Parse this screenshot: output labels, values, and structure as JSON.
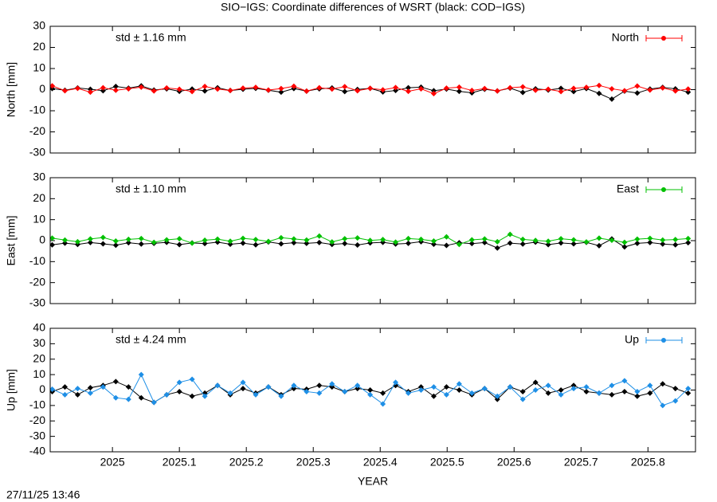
{
  "title": "SIO−IGS: Coordinate differences of WSRT (black: COD−IGS)",
  "timestamp": "27/11/25 13:46",
  "chart_data": [
    {
      "type": "line",
      "ylabel": "North [mm]",
      "annotation": "std ± 1.16 mm",
      "legend": "top-right",
      "xlim": [
        2024.907,
        2025.871
      ],
      "ylim": [
        -30,
        30
      ],
      "yticks": [
        -30,
        -20,
        -10,
        0,
        10,
        20,
        30
      ],
      "x": [
        2024.91,
        2024.929,
        2024.948,
        2024.967,
        2024.986,
        2025.005,
        2025.024,
        2025.043,
        2025.062,
        2025.081,
        2025.1,
        2025.119,
        2025.138,
        2025.157,
        2025.176,
        2025.195,
        2025.214,
        2025.233,
        2025.252,
        2025.271,
        2025.29,
        2025.309,
        2025.328,
        2025.347,
        2025.366,
        2025.385,
        2025.404,
        2025.423,
        2025.442,
        2025.461,
        2025.48,
        2025.499,
        2025.518,
        2025.537,
        2025.556,
        2025.575,
        2025.594,
        2025.613,
        2025.632,
        2025.651,
        2025.67,
        2025.689,
        2025.708,
        2025.727,
        2025.746,
        2025.765,
        2025.784,
        2025.803,
        2025.822,
        2025.841,
        2025.86
      ],
      "series": [
        {
          "color": "#000000",
          "values": [
            0.5,
            -0.3,
            0.8,
            0.2,
            -0.5,
            1.5,
            0.7,
            1.8,
            -0.2,
            0.4,
            -0.8,
            0.3,
            -0.6,
            0.9,
            -0.4,
            0.2,
            0.6,
            -0.3,
            -1.2,
            0.5,
            -0.7,
            0.4,
            0.8,
            -0.9,
            0.1,
            0.6,
            -1.1,
            -0.4,
            0.9,
            1.2,
            -0.5,
            0.3,
            -0.8,
            -1.5,
            0.2,
            -0.6,
            0.7,
            -1.3,
            0.4,
            -0.2,
            0.6,
            -0.9,
            0.5,
            -1.8,
            -4.5,
            -0.7,
            -1.6,
            0.3,
            1.1,
            0.4,
            -1.2
          ]
        },
        {
          "name": "North",
          "color": "#ff0000",
          "values": [
            1.8,
            -0.5,
            0.6,
            -1.2,
            0.9,
            -0.3,
            0.4,
            1.2,
            -0.6,
            0.8,
            0.2,
            -0.9,
            1.5,
            0.3,
            -0.4,
            0.7,
            1.1,
            -0.2,
            0.5,
            1.6,
            -0.7,
            0.9,
            0.3,
            1.4,
            -0.5,
            0.6,
            -0.1,
            1.0,
            -0.8,
            0.4,
            -1.9,
            0.7,
            1.2,
            -0.4,
            0.5,
            -0.6,
            0.9,
            1.3,
            -0.3,
            0.2,
            -0.9,
            0.6,
            1.1,
            2.0,
            0.4,
            -0.5,
            1.7,
            -0.2,
            0.8,
            -0.6,
            0.3
          ]
        }
      ]
    },
    {
      "type": "line",
      "ylabel": "East [mm]",
      "annotation": "std ± 1.10 mm",
      "legend": "top-right",
      "xlim": [
        2024.907,
        2025.871
      ],
      "ylim": [
        -30,
        30
      ],
      "yticks": [
        -30,
        -20,
        -10,
        0,
        10,
        20,
        30
      ],
      "x": [
        2024.91,
        2024.929,
        2024.948,
        2024.967,
        2024.986,
        2025.005,
        2025.024,
        2025.043,
        2025.062,
        2025.081,
        2025.1,
        2025.119,
        2025.138,
        2025.157,
        2025.176,
        2025.195,
        2025.214,
        2025.233,
        2025.252,
        2025.271,
        2025.29,
        2025.309,
        2025.328,
        2025.347,
        2025.366,
        2025.385,
        2025.404,
        2025.423,
        2025.442,
        2025.461,
        2025.48,
        2025.499,
        2025.518,
        2025.537,
        2025.556,
        2025.575,
        2025.594,
        2025.613,
        2025.632,
        2025.651,
        2025.67,
        2025.689,
        2025.708,
        2025.727,
        2025.746,
        2025.765,
        2025.784,
        2025.803,
        2025.822,
        2025.841,
        2025.86
      ],
      "series": [
        {
          "color": "#000000",
          "values": [
            -2.0,
            -1.2,
            -1.8,
            -0.9,
            -1.5,
            -2.2,
            -1.0,
            -1.6,
            -1.3,
            -0.8,
            -1.9,
            -1.1,
            -1.4,
            -0.7,
            -1.7,
            -1.2,
            -2.0,
            -0.6,
            -1.5,
            -1.0,
            -1.3,
            -0.9,
            -1.8,
            -1.4,
            -2.1,
            -1.1,
            -0.8,
            -1.6,
            -1.3,
            -0.5,
            -1.7,
            -2.3,
            -1.0,
            -1.4,
            -0.9,
            -3.5,
            -1.2,
            -1.6,
            -0.7,
            -1.9,
            -1.1,
            -1.5,
            -0.8,
            -2.4,
            0.8,
            -3.0,
            -1.3,
            -0.9,
            -1.6,
            -2.0,
            -1.0
          ]
        },
        {
          "name": "East",
          "color": "#00c000",
          "values": [
            1.2,
            0.3,
            -0.5,
            0.8,
            1.5,
            -0.2,
            0.6,
            1.0,
            -0.8,
            0.4,
            0.9,
            -1.2,
            0.2,
            0.7,
            -0.3,
            1.1,
            0.5,
            -0.4,
            1.4,
            0.8,
            0.3,
            2.2,
            -0.6,
            0.9,
            1.3,
            0.1,
            0.5,
            -0.7,
            1.0,
            0.6,
            -0.2,
            1.8,
            -1.8,
            0.4,
            0.8,
            -0.5,
            3.0,
            0.6,
            0.1,
            -0.3,
            0.9,
            0.4,
            -0.6,
            1.2,
            0.2,
            -0.8,
            0.7,
            1.1,
            0.3,
            0.5,
            1.0
          ]
        }
      ]
    },
    {
      "type": "line",
      "ylabel": "Up [mm]",
      "annotation": "std ± 4.24 mm",
      "legend": "top-right",
      "xlabel": "YEAR",
      "xlim": [
        2024.907,
        2025.871
      ],
      "ylim": [
        -40,
        40
      ],
      "yticks": [
        -40,
        -30,
        -20,
        -10,
        0,
        10,
        20,
        30,
        40
      ],
      "xticks": [
        2025,
        2025.1,
        2025.2,
        2025.3,
        2025.4,
        2025.5,
        2025.6,
        2025.7,
        2025.8
      ],
      "x": [
        2024.91,
        2024.929,
        2024.948,
        2024.967,
        2024.986,
        2025.005,
        2025.024,
        2025.043,
        2025.062,
        2025.081,
        2025.1,
        2025.119,
        2025.138,
        2025.157,
        2025.176,
        2025.195,
        2025.214,
        2025.233,
        2025.252,
        2025.271,
        2025.29,
        2025.309,
        2025.328,
        2025.347,
        2025.366,
        2025.385,
        2025.404,
        2025.423,
        2025.442,
        2025.461,
        2025.48,
        2025.499,
        2025.518,
        2025.537,
        2025.556,
        2025.575,
        2025.594,
        2025.613,
        2025.632,
        2025.651,
        2025.67,
        2025.689,
        2025.708,
        2025.727,
        2025.746,
        2025.765,
        2025.784,
        2025.803,
        2025.822,
        2025.841,
        2025.86
      ],
      "series": [
        {
          "color": "#000000",
          "values": [
            -1,
            2,
            -3,
            1.5,
            3,
            5.5,
            2,
            -5,
            -8,
            -3,
            -1,
            -4,
            -2,
            3,
            -3,
            1,
            -2,
            2,
            -3,
            1,
            0.5,
            3,
            2,
            -1,
            1,
            0,
            -2,
            3,
            -1,
            2,
            -4,
            2,
            0,
            -3,
            1,
            -6,
            2,
            -1,
            5,
            -2,
            0,
            3,
            -1,
            -2,
            -3,
            -1,
            -4,
            -2,
            4,
            1,
            -2
          ]
        },
        {
          "name": "Up",
          "color": "#1e8fe6",
          "values": [
            0.5,
            -3,
            1,
            -2,
            2,
            -5,
            -6,
            10,
            -8,
            -3,
            5,
            7,
            -4,
            3,
            -2,
            5,
            -3,
            2,
            -4,
            3,
            -1,
            -2,
            4,
            -1,
            3,
            -3,
            -9,
            5,
            -2,
            0,
            2,
            -3,
            4,
            -2,
            1,
            -4,
            2,
            -6,
            0,
            3,
            -3,
            1,
            2,
            -2,
            3,
            6,
            -1,
            3,
            -10,
            -7,
            1
          ]
        }
      ]
    }
  ]
}
